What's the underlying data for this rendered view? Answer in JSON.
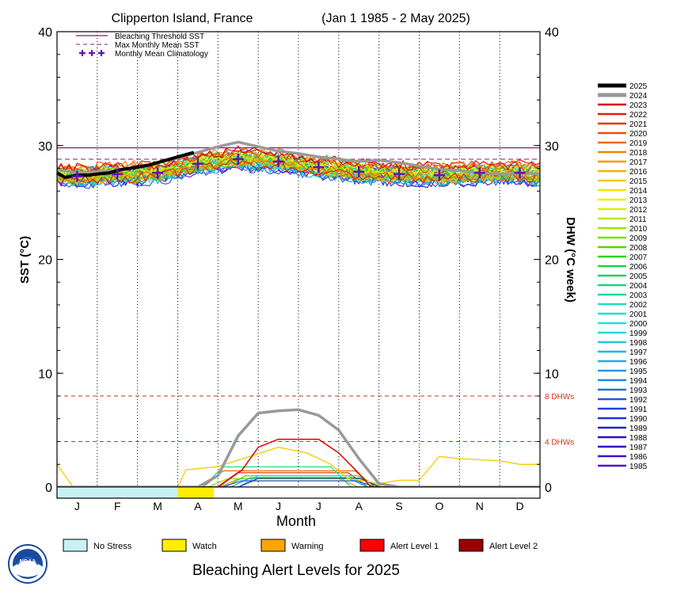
{
  "chart_data": {
    "type": "line",
    "title": "Clipperton Island, France",
    "date_range": "(Jan 1 1985 - 2 May 2025)",
    "ylabel_left": "SST (°C)",
    "ylabel_right": "DHW (°C week)",
    "xlabel": "Month",
    "months": [
      "J",
      "F",
      "M",
      "A",
      "M",
      "J",
      "J",
      "A",
      "S",
      "O",
      "N",
      "D"
    ],
    "ylim": [
      0,
      40
    ],
    "yticks": [
      0,
      10,
      20,
      30,
      40
    ],
    "grid": "vertical dotted month boundaries",
    "legend_top": [
      {
        "label": "Bleaching Threshold SST",
        "style": "solid",
        "color": "#8b1a6b"
      },
      {
        "label": "Max Monthly Mean SST",
        "style": "dashed",
        "color": "#8b1a6b"
      },
      {
        "label": "Monthly Mean Climatology",
        "style": "plus",
        "color": "#5a1ab0"
      }
    ],
    "bleaching_threshold_sst": 29.8,
    "max_monthly_mean_sst": 28.8,
    "climatology": [
      27.3,
      27.5,
      27.6,
      28.4,
      28.8,
      28.6,
      28.1,
      27.7,
      27.5,
      27.4,
      27.6,
      27.6
    ],
    "dhw_reference_lines": [
      {
        "value": 8,
        "label": "8 DHWs",
        "color": "#d03010"
      },
      {
        "value": 4,
        "label": "4 DHWs",
        "color": "#d03010"
      }
    ],
    "years": [
      2025,
      2024,
      2023,
      2022,
      2021,
      2020,
      2019,
      2018,
      2017,
      2016,
      2015,
      2014,
      2013,
      2012,
      2011,
      2010,
      2009,
      2008,
      2007,
      2006,
      2005,
      2004,
      2003,
      2002,
      2001,
      2000,
      1999,
      1998,
      1997,
      1996,
      1995,
      1994,
      1993,
      1992,
      1991,
      1990,
      1989,
      1988,
      1987,
      1986,
      1985
    ],
    "year_colors": [
      "#000000",
      "#999999",
      "#d40000",
      "#e02000",
      "#e83800",
      "#ec5000",
      "#f06800",
      "#f28000",
      "#f59800",
      "#f8b000",
      "#f8c800",
      "#f5e000",
      "#eef000",
      "#d8f000",
      "#b8ec00",
      "#98e800",
      "#78e000",
      "#50d800",
      "#30d020",
      "#20d040",
      "#20d060",
      "#20d080",
      "#20d8a0",
      "#20e0b8",
      "#20e0c8",
      "#20e0d8",
      "#20d8e0",
      "#20c8e0",
      "#20b8e8",
      "#20a8e8",
      "#2098e8",
      "#2088e8",
      "#2070e0",
      "#2058e0",
      "#2040e0",
      "#2030d8",
      "#2020d0",
      "#2810c8",
      "#3010c0",
      "#4010c8",
      "#5010c8"
    ],
    "sst_2025": {
      "x_month": [
        0.0,
        0.2,
        0.5,
        0.8,
        1.0,
        1.3,
        1.6,
        2.0,
        2.3,
        2.6,
        3.0,
        3.4
      ],
      "y": [
        27.6,
        27.2,
        27.4,
        27.4,
        27.5,
        27.6,
        27.9,
        28.1,
        28.3,
        28.6,
        29.0,
        29.4
      ]
    },
    "sst_2024": {
      "x_month": [
        0.0,
        0.5,
        1.0,
        1.5,
        2.0,
        2.5,
        3.0,
        3.5,
        4.0,
        4.5,
        5.0,
        5.5,
        6.0,
        6.5,
        7.0,
        7.5,
        8.0,
        8.5,
        9.0,
        9.5,
        10.0,
        10.5,
        11.0,
        11.5,
        12.0
      ],
      "y": [
        27.9,
        27.6,
        27.7,
        27.8,
        28.1,
        28.5,
        28.9,
        29.4,
        29.9,
        30.3,
        29.9,
        29.5,
        29.3,
        29.0,
        28.8,
        28.6,
        28.7,
        28.5,
        28.2,
        27.9,
        27.8,
        27.6,
        27.5,
        27.6,
        27.5
      ]
    },
    "dhw_2024": {
      "x_month": [
        0,
        3.5,
        4.0,
        4.5,
        5.0,
        5.5,
        6.0,
        6.5,
        7.0,
        7.5,
        8.0,
        8.5,
        12.0
      ],
      "y": [
        0,
        0,
        1.0,
        4.5,
        6.5,
        6.7,
        6.8,
        6.3,
        5.0,
        2.5,
        0.3,
        0,
        0
      ]
    },
    "dhw_2023": {
      "x_month": [
        0,
        4.0,
        4.6,
        5.0,
        5.5,
        6.0,
        6.5,
        7.0,
        7.5,
        7.8,
        12.0
      ],
      "y": [
        0,
        0,
        1.5,
        3.5,
        4.2,
        4.2,
        4.2,
        3.0,
        1.2,
        0,
        0
      ]
    },
    "dhw_2015": {
      "x_month": [
        0,
        0.4,
        3.0,
        3.2,
        4.0,
        5.5,
        6.2,
        6.8,
        7.2,
        8.0,
        8.5,
        9.0,
        9.5,
        10.0,
        11.0,
        11.5,
        12.0
      ],
      "y": [
        2.0,
        0,
        0,
        1.5,
        1.8,
        3.5,
        3.0,
        2.0,
        0.8,
        0.3,
        0.6,
        0.6,
        2.7,
        2.5,
        2.3,
        2.0,
        2.0
      ]
    },
    "alert_bar": [
      {
        "from_month": 0.0,
        "to_month": 3.0,
        "level": "No Stress",
        "color": "#c8f2f2"
      },
      {
        "from_month": 3.0,
        "to_month": 3.9,
        "level": "Watch",
        "color": "#ffee00"
      }
    ],
    "alert_legend": [
      {
        "label": "No Stress",
        "color": "#c8f2f2"
      },
      {
        "label": "Watch",
        "color": "#ffee00"
      },
      {
        "label": "Warning",
        "color": "#ffa500"
      },
      {
        "label": "Alert Level 1",
        "color": "#ff0000"
      },
      {
        "label": "Alert Level 2",
        "color": "#990000"
      }
    ],
    "footer": "Bleaching Alert Levels for 2025",
    "logo_text": "NOAA"
  }
}
